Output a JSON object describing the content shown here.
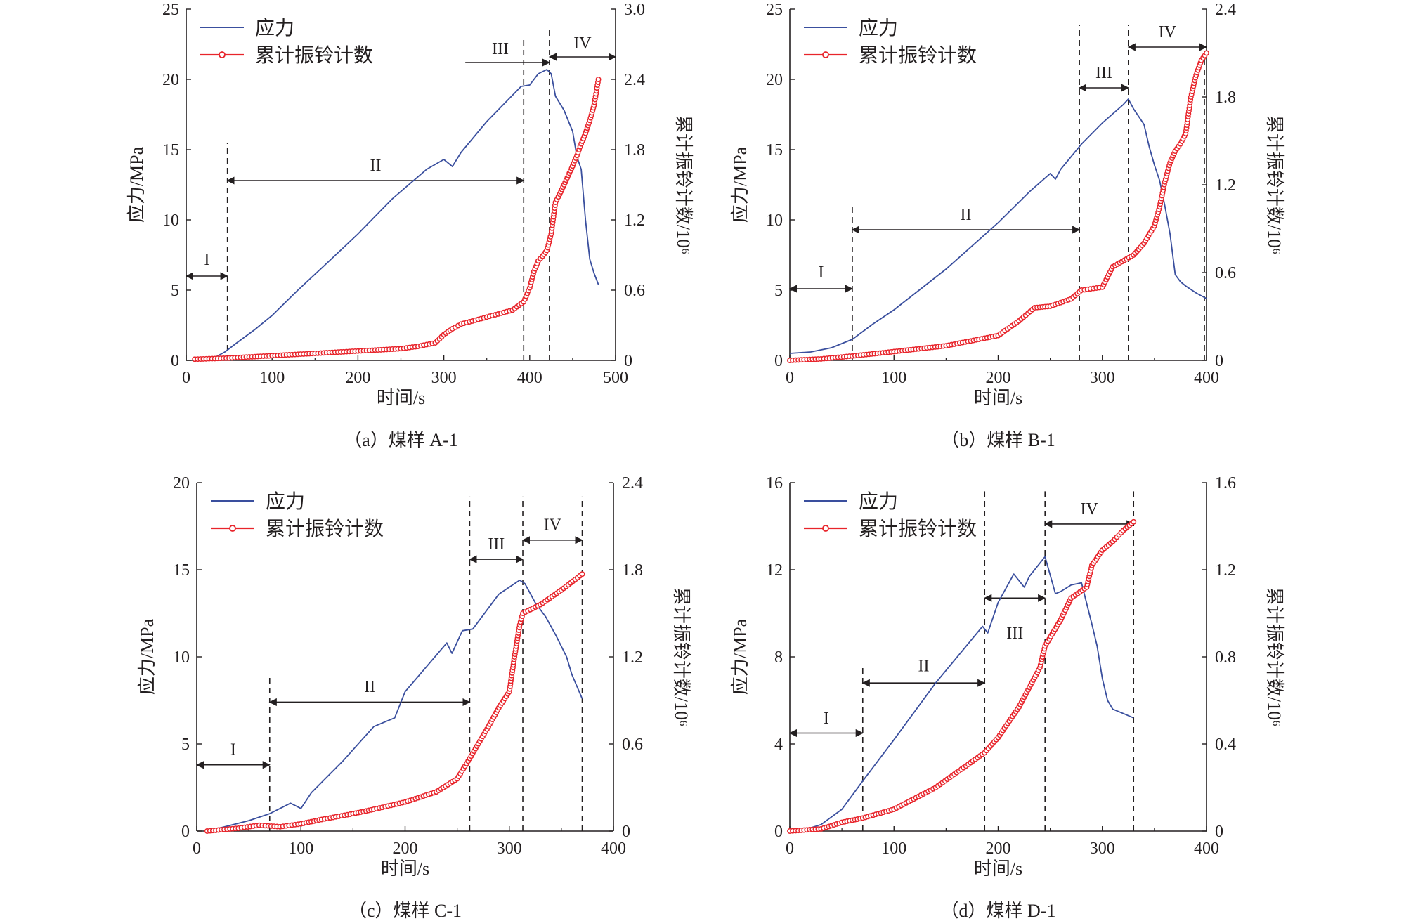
{
  "colors": {
    "stress": "#3a4f9e",
    "count": "#e8242b",
    "axis": "#231f20"
  },
  "legend": {
    "stress": "应力",
    "count": "累计振铃计数"
  },
  "chart_data": [
    {
      "type": "line",
      "caption": "（a）煤样 A-1",
      "xlabel": "时间/s",
      "ylabel": "应力/MPa",
      "y2label": "累计振铃计数/10⁶",
      "xlim": [
        0,
        500
      ],
      "ylim": [
        0,
        25
      ],
      "y2lim": [
        0,
        3.0
      ],
      "xticks": [
        "0",
        "100",
        "200",
        "300",
        "400",
        "500"
      ],
      "yticks": [
        "0",
        "5",
        "10",
        "15",
        "20",
        "25"
      ],
      "y2ticks": [
        "0",
        "0.6",
        "1.2",
        "1.8",
        "2.4",
        "3.0"
      ],
      "legend_position": "top-left",
      "dividers": [
        {
          "x": 48,
          "ytop": 15.5
        },
        {
          "x": 393,
          "ytop": 22.8
        },
        {
          "x": 423,
          "ytop": 23.6
        }
      ],
      "stages": [
        {
          "label": "I",
          "x1": 0,
          "x2": 48,
          "y": 6.0,
          "label_y": 7.2,
          "arrow": "both"
        },
        {
          "label": "II",
          "x1": 48,
          "x2": 393,
          "y": 12.8,
          "label_y": 13.9,
          "arrow": "both"
        },
        {
          "label": "III",
          "x1": 325,
          "x2": 423,
          "y": 21.2,
          "label_y": 22.2,
          "arrow": "end"
        },
        {
          "label": "IV",
          "x1": 423,
          "x2": 500,
          "y": 21.6,
          "label_y": 22.6,
          "arrow": "both"
        }
      ],
      "series": [
        {
          "name": "应力",
          "axis": "left",
          "marker": false,
          "x": [
            10,
            30,
            45,
            60,
            80,
            100,
            130,
            160,
            200,
            240,
            280,
            300,
            310,
            320,
            350,
            390,
            400,
            410,
            420,
            425,
            430,
            440,
            450,
            455,
            460,
            465,
            470,
            475,
            480
          ],
          "y": [
            0,
            0.1,
            0.6,
            1.3,
            2.2,
            3.2,
            5.0,
            6.7,
            9.0,
            11.5,
            13.6,
            14.3,
            13.8,
            14.8,
            17.0,
            19.5,
            19.6,
            20.4,
            20.7,
            20.4,
            18.8,
            17.8,
            16.3,
            14.5,
            13.6,
            10.0,
            7.2,
            6.2,
            5.4
          ]
        },
        {
          "name": "累计振铃计数",
          "axis": "right",
          "marker": true,
          "x": [
            10,
            50,
            100,
            150,
            200,
            250,
            270,
            290,
            300,
            310,
            320,
            350,
            380,
            393,
            400,
            405,
            410,
            415,
            420,
            425,
            430,
            435,
            440,
            445,
            450,
            455,
            460,
            465,
            470,
            475,
            480
          ],
          "y": [
            0.01,
            0.02,
            0.04,
            0.06,
            0.08,
            0.1,
            0.12,
            0.15,
            0.22,
            0.27,
            0.31,
            0.37,
            0.43,
            0.5,
            0.62,
            0.76,
            0.85,
            0.89,
            0.94,
            1.08,
            1.35,
            1.42,
            1.5,
            1.58,
            1.66,
            1.75,
            1.85,
            1.94,
            2.05,
            2.18,
            2.4
          ]
        }
      ]
    },
    {
      "type": "line",
      "caption": "（b）煤样 B-1",
      "xlabel": "时间/s",
      "ylabel": "应力/MPa",
      "y2label": "累计振铃计数/10⁶",
      "xlim": [
        0,
        400
      ],
      "ylim": [
        0,
        25
      ],
      "y2lim": [
        0,
        2.4
      ],
      "xticks": [
        "0",
        "100",
        "200",
        "300",
        "400"
      ],
      "yticks": [
        "0",
        "5",
        "10",
        "15",
        "20",
        "25"
      ],
      "y2ticks": [
        "0",
        "0.6",
        "1.2",
        "1.8",
        "2.4"
      ],
      "legend_position": "top-left",
      "dividers": [
        {
          "x": 60,
          "ytop": 11.0
        },
        {
          "x": 278,
          "ytop": 23.9
        },
        {
          "x": 325,
          "ytop": 23.9
        },
        {
          "x": 398,
          "ytop": 22.0
        }
      ],
      "stages": [
        {
          "label": "I",
          "x1": 0,
          "x2": 60,
          "y": 5.1,
          "label_y": 6.3,
          "arrow": "both"
        },
        {
          "label": "II",
          "x1": 60,
          "x2": 278,
          "y": 9.3,
          "label_y": 10.4,
          "arrow": "both"
        },
        {
          "label": "III",
          "x1": 278,
          "x2": 325,
          "y": 19.4,
          "label_y": 20.5,
          "arrow": "both"
        },
        {
          "label": "IV",
          "x1": 325,
          "x2": 400,
          "y": 22.3,
          "label_y": 23.4,
          "arrow": "both"
        }
      ],
      "series": [
        {
          "name": "应力",
          "axis": "left",
          "marker": false,
          "x": [
            0,
            20,
            40,
            60,
            80,
            100,
            150,
            200,
            230,
            250,
            255,
            260,
            280,
            300,
            320,
            325,
            330,
            340,
            345,
            350,
            355,
            360,
            365,
            370,
            375,
            380,
            390,
            400
          ],
          "y": [
            0.5,
            0.6,
            0.9,
            1.5,
            2.6,
            3.6,
            6.5,
            9.8,
            12.0,
            13.3,
            12.9,
            13.6,
            15.4,
            16.9,
            18.2,
            18.6,
            17.9,
            16.8,
            15.2,
            13.9,
            12.8,
            11.0,
            9.0,
            6.1,
            5.6,
            5.3,
            4.8,
            4.4
          ]
        },
        {
          "name": "累计振铃计数",
          "axis": "right",
          "marker": true,
          "x": [
            0,
            30,
            60,
            100,
            150,
            200,
            220,
            235,
            250,
            270,
            280,
            300,
            310,
            330,
            340,
            350,
            355,
            360,
            365,
            370,
            375,
            380,
            385,
            390,
            395,
            400
          ],
          "y": [
            0,
            0.01,
            0.03,
            0.06,
            0.1,
            0.17,
            0.27,
            0.36,
            0.37,
            0.42,
            0.48,
            0.5,
            0.64,
            0.72,
            0.8,
            0.92,
            1.05,
            1.22,
            1.35,
            1.43,
            1.48,
            1.55,
            1.8,
            1.95,
            2.05,
            2.1
          ]
        }
      ]
    },
    {
      "type": "line",
      "caption": "（c）煤样 C-1",
      "xlabel": "时间/s",
      "ylabel": "应力/MPa",
      "y2label": "累计振铃计数/10⁶",
      "xlim": [
        0,
        400
      ],
      "ylim": [
        0,
        20
      ],
      "y2lim": [
        0,
        2.4
      ],
      "xticks": [
        "0",
        "100",
        "200",
        "300",
        "400"
      ],
      "yticks": [
        "0",
        "5",
        "10",
        "15",
        "20"
      ],
      "y2ticks": [
        "0",
        "0.6",
        "1.2",
        "1.8",
        "2.4"
      ],
      "legend_position": "top-left",
      "dividers": [
        {
          "x": 70,
          "ytop": 9.0
        },
        {
          "x": 262,
          "ytop": 19.2
        },
        {
          "x": 313,
          "ytop": 19.2
        },
        {
          "x": 370,
          "ytop": 19.2
        }
      ],
      "stages": [
        {
          "label": "I",
          "x1": 0,
          "x2": 70,
          "y": 3.8,
          "label_y": 4.7,
          "arrow": "both"
        },
        {
          "label": "II",
          "x1": 70,
          "x2": 262,
          "y": 7.4,
          "label_y": 8.3,
          "arrow": "both"
        },
        {
          "label": "III",
          "x1": 262,
          "x2": 313,
          "y": 15.6,
          "label_y": 16.5,
          "arrow": "both"
        },
        {
          "label": "IV",
          "x1": 313,
          "x2": 370,
          "y": 16.7,
          "label_y": 17.6,
          "arrow": "both"
        }
      ],
      "series": [
        {
          "name": "应力",
          "axis": "left",
          "marker": false,
          "x": [
            10,
            30,
            50,
            70,
            90,
            100,
            110,
            140,
            170,
            190,
            200,
            240,
            245,
            255,
            265,
            290,
            310,
            315,
            325,
            335,
            345,
            355,
            360,
            370
          ],
          "y": [
            0,
            0.3,
            0.6,
            1.0,
            1.6,
            1.3,
            2.2,
            4.0,
            6.0,
            6.5,
            8.0,
            10.8,
            10.2,
            11.5,
            11.6,
            13.6,
            14.4,
            14.2,
            13.1,
            12.3,
            11.2,
            10.0,
            9.0,
            7.6
          ]
        },
        {
          "name": "累计振铃计数",
          "axis": "right",
          "marker": true,
          "x": [
            10,
            40,
            60,
            80,
            100,
            120,
            150,
            170,
            200,
            230,
            250,
            262,
            280,
            290,
            300,
            305,
            310,
            313,
            330,
            350,
            370
          ],
          "y": [
            0,
            0.02,
            0.04,
            0.03,
            0.05,
            0.08,
            0.12,
            0.15,
            0.2,
            0.27,
            0.36,
            0.5,
            0.72,
            0.85,
            0.96,
            1.2,
            1.42,
            1.5,
            1.56,
            1.66,
            1.77
          ]
        }
      ]
    },
    {
      "type": "line",
      "caption": "（d）煤样 D-1",
      "xlabel": "时间/s",
      "ylabel": "应力/MPa",
      "y2label": "累计振铃计数/10⁶",
      "xlim": [
        0,
        400
      ],
      "ylim": [
        0,
        16
      ],
      "y2lim": [
        0,
        1.6
      ],
      "xticks": [
        "0",
        "100",
        "200",
        "300",
        "400"
      ],
      "yticks": [
        "0",
        "4",
        "8",
        "12",
        "16"
      ],
      "y2ticks": [
        "0",
        "0.4",
        "0.8",
        "1.2",
        "1.6"
      ],
      "legend_position": "top-left",
      "dividers": [
        {
          "x": 70,
          "ytop": 7.6
        },
        {
          "x": 187,
          "ytop": 15.6
        },
        {
          "x": 245,
          "ytop": 15.6
        },
        {
          "x": 330,
          "ytop": 15.6
        }
      ],
      "stages": [
        {
          "label": "I",
          "x1": 0,
          "x2": 70,
          "y": 4.5,
          "label_y": 5.2,
          "arrow": "both"
        },
        {
          "label": "II",
          "x1": 70,
          "x2": 187,
          "y": 6.8,
          "label_y": 7.6,
          "arrow": "both"
        },
        {
          "label": "III",
          "x1": 187,
          "x2": 245,
          "y": 10.7,
          "label_y": 9.1,
          "arrow": "both"
        },
        {
          "label": "IV",
          "x1": 245,
          "x2": 330,
          "y": 14.1,
          "label_y": 14.8,
          "arrow": "both"
        }
      ],
      "series": [
        {
          "name": "应力",
          "axis": "left",
          "marker": false,
          "x": [
            10,
            30,
            50,
            70,
            100,
            140,
            185,
            190,
            200,
            215,
            225,
            230,
            240,
            245,
            255,
            260,
            270,
            280,
            290,
            295,
            300,
            305,
            310,
            320,
            330
          ],
          "y": [
            0,
            0.3,
            1.0,
            2.3,
            4.2,
            6.8,
            9.4,
            9.1,
            10.5,
            11.8,
            11.2,
            11.7,
            12.3,
            12.6,
            10.9,
            11.0,
            11.3,
            11.4,
            9.5,
            8.5,
            7.0,
            6.0,
            5.6,
            5.4,
            5.2
          ]
        },
        {
          "name": "累计振铃计数",
          "axis": "right",
          "marker": true,
          "x": [
            0,
            30,
            50,
            70,
            100,
            140,
            187,
            200,
            220,
            240,
            245,
            260,
            270,
            285,
            290,
            300,
            310,
            320,
            330
          ],
          "y": [
            0,
            0.01,
            0.04,
            0.06,
            0.1,
            0.2,
            0.36,
            0.43,
            0.57,
            0.75,
            0.85,
            0.97,
            1.07,
            1.12,
            1.22,
            1.29,
            1.33,
            1.38,
            1.42
          ]
        }
      ]
    }
  ]
}
